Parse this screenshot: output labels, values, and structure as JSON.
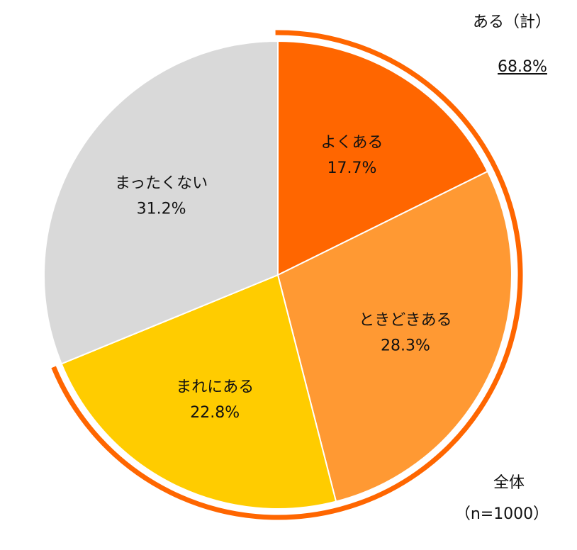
{
  "chart_data": {
    "type": "pie",
    "categories": [
      "よくある",
      "ときどきある",
      "まれにある",
      "まったくない"
    ],
    "values": [
      17.7,
      28.3,
      22.8,
      31.2
    ],
    "value_labels": [
      "17.7%",
      "28.3%",
      "22.8%",
      "31.2%"
    ],
    "colors": [
      "#ff6600",
      "#ff9933",
      "#ffcc00",
      "#d9d9d9"
    ],
    "group_total": {
      "label": "ある（計）",
      "value": 68.8,
      "value_label": "68.8%",
      "color": "#ff6600"
    },
    "base_label": "全体",
    "sample_label": "（n=1000）"
  }
}
